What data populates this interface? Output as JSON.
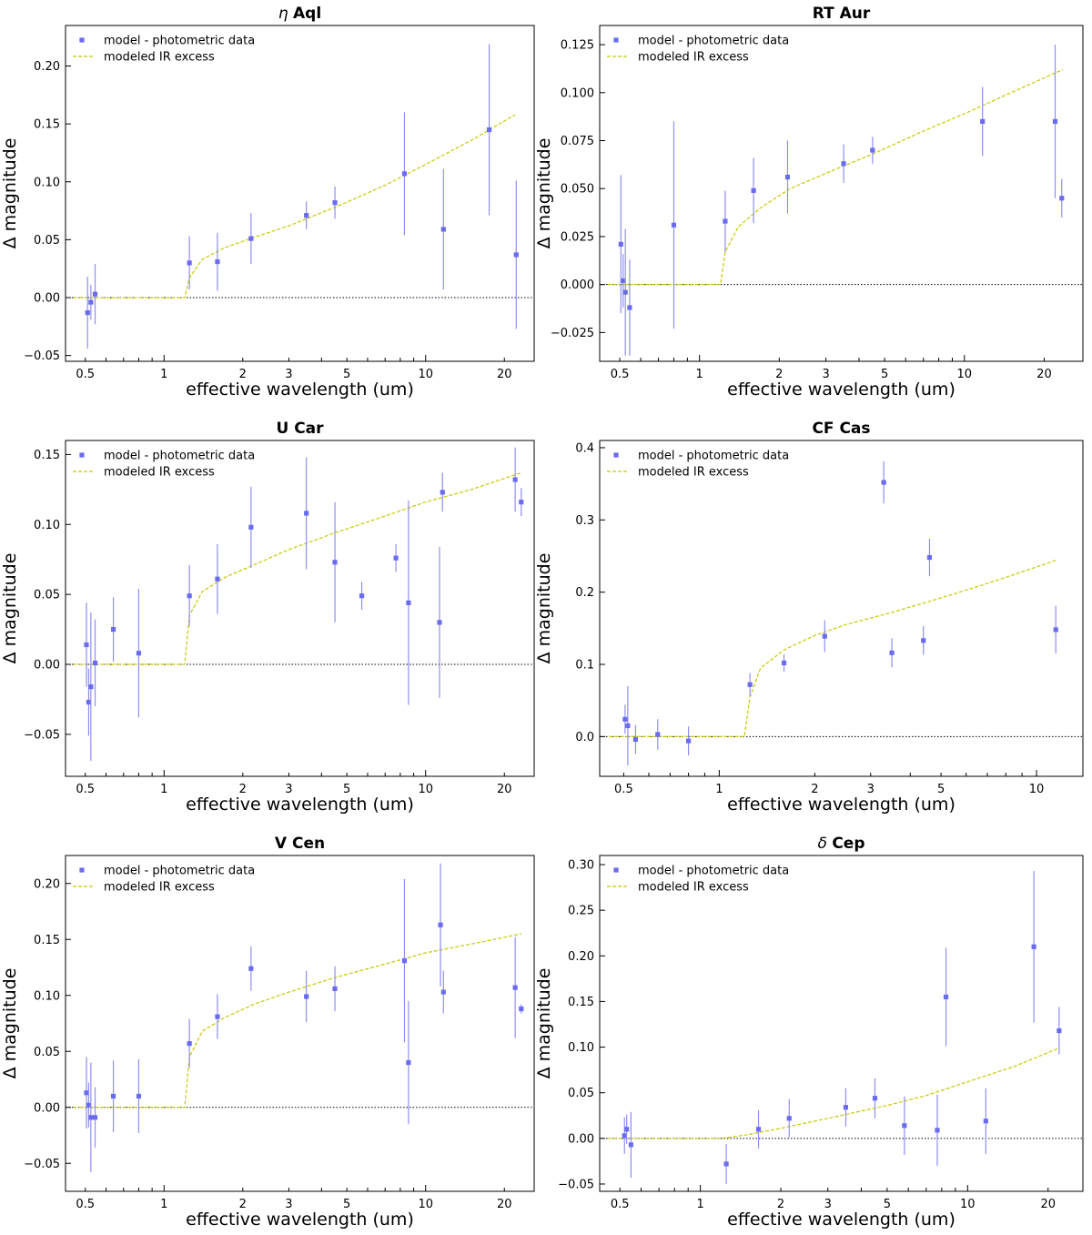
{
  "figure": {
    "xlabel": "effective wavelength (um)",
    "ylabel": "Δ magnitude",
    "legend": {
      "data": "model - photometric data",
      "model": "modeled IR excess",
      "position": "top-left"
    },
    "colors": {
      "data": "#6b6bf0",
      "errorbar": "#8f8ff2",
      "model": "#c8c800",
      "zeroline": "#000000"
    }
  },
  "chart_data": [
    {
      "type": "scatter",
      "title_prefix": "η",
      "title_main": "Aql",
      "xscale": "log",
      "xlim": [
        0.42,
        26
      ],
      "ylim": [
        -0.055,
        0.235
      ],
      "xticks": [
        0.5,
        1,
        2,
        3,
        5,
        10,
        20
      ],
      "yticks": [
        -0.05,
        0.0,
        0.05,
        0.1,
        0.15,
        0.2
      ],
      "points": [
        {
          "x": 0.51,
          "y": -0.013,
          "err": 0.031
        },
        {
          "x": 0.525,
          "y": -0.004,
          "err": 0.015
        },
        {
          "x": 0.545,
          "y": 0.003,
          "err": 0.026
        },
        {
          "x": 1.25,
          "y": 0.03,
          "err": 0.023
        },
        {
          "x": 1.6,
          "y": 0.031,
          "err": 0.025
        },
        {
          "x": 2.15,
          "y": 0.051,
          "err": 0.022
        },
        {
          "x": 3.5,
          "y": 0.071,
          "err": 0.012
        },
        {
          "x": 4.5,
          "y": 0.082,
          "err": 0.014
        },
        {
          "x": 8.3,
          "y": 0.107,
          "err": 0.053
        },
        {
          "x": 11.7,
          "y": 0.059,
          "err": 0.052
        },
        {
          "x": 17.5,
          "y": 0.145,
          "err": 0.074
        },
        {
          "x": 22.2,
          "y": 0.037,
          "err": 0.064
        }
      ],
      "model": {
        "onset": 1.2,
        "x": [
          0.45,
          1.2,
          1.25,
          1.4,
          1.7,
          2.2,
          3,
          4.5,
          7,
          10,
          15,
          22
        ],
        "y": [
          0,
          0,
          0.017,
          0.033,
          0.043,
          0.052,
          0.062,
          0.078,
          0.097,
          0.115,
          0.136,
          0.158
        ]
      }
    },
    {
      "type": "scatter",
      "title_prefix": "",
      "title_main": "RT Aur",
      "xscale": "log",
      "xlim": [
        0.42,
        28
      ],
      "ylim": [
        -0.04,
        0.135
      ],
      "xticks": [
        0.5,
        1,
        2,
        3,
        5,
        10,
        20
      ],
      "yticks": [
        -0.025,
        0.0,
        0.025,
        0.05,
        0.075,
        0.1,
        0.125
      ],
      "points": [
        {
          "x": 0.505,
          "y": 0.021,
          "err": 0.036
        },
        {
          "x": 0.515,
          "y": 0.002,
          "err": 0.014
        },
        {
          "x": 0.525,
          "y": -0.004,
          "err": 0.033
        },
        {
          "x": 0.545,
          "y": -0.012,
          "err": 0.025
        },
        {
          "x": 0.8,
          "y": 0.031,
          "err": 0.054
        },
        {
          "x": 1.25,
          "y": 0.033,
          "err": 0.016
        },
        {
          "x": 1.6,
          "y": 0.049,
          "err": 0.017
        },
        {
          "x": 2.15,
          "y": 0.056,
          "err": 0.019
        },
        {
          "x": 3.5,
          "y": 0.063,
          "err": 0.01
        },
        {
          "x": 4.5,
          "y": 0.07,
          "err": 0.007
        },
        {
          "x": 11.7,
          "y": 0.085,
          "err": 0.018
        },
        {
          "x": 22.0,
          "y": 0.085,
          "err": 0.04
        },
        {
          "x": 23.3,
          "y": 0.045,
          "err": 0.01
        }
      ],
      "model": {
        "onset": 1.2,
        "x": [
          0.45,
          1.2,
          1.25,
          1.4,
          1.7,
          2.2,
          3,
          4.5,
          7,
          10,
          15,
          23.5
        ],
        "y": [
          0,
          0,
          0.017,
          0.03,
          0.04,
          0.05,
          0.058,
          0.068,
          0.08,
          0.089,
          0.1,
          0.112
        ]
      }
    },
    {
      "type": "scatter",
      "title_prefix": "",
      "title_main": "U Car",
      "xscale": "log",
      "xlim": [
        0.42,
        26
      ],
      "ylim": [
        -0.08,
        0.16
      ],
      "xticks": [
        0.5,
        1,
        2,
        3,
        5,
        10,
        20
      ],
      "yticks": [
        -0.05,
        0.0,
        0.05,
        0.1,
        0.15
      ],
      "points": [
        {
          "x": 0.505,
          "y": 0.014,
          "err": 0.03
        },
        {
          "x": 0.515,
          "y": -0.027,
          "err": 0.024
        },
        {
          "x": 0.525,
          "y": -0.016,
          "err": 0.053
        },
        {
          "x": 0.545,
          "y": 0.001,
          "err": 0.031
        },
        {
          "x": 0.64,
          "y": 0.025,
          "err": 0.023
        },
        {
          "x": 0.8,
          "y": 0.008,
          "err": 0.046
        },
        {
          "x": 1.25,
          "y": 0.049,
          "err": 0.022
        },
        {
          "x": 1.6,
          "y": 0.061,
          "err": 0.025
        },
        {
          "x": 2.15,
          "y": 0.098,
          "err": 0.029
        },
        {
          "x": 3.5,
          "y": 0.108,
          "err": 0.04
        },
        {
          "x": 4.5,
          "y": 0.073,
          "err": 0.043
        },
        {
          "x": 5.7,
          "y": 0.049,
          "err": 0.01
        },
        {
          "x": 7.7,
          "y": 0.076,
          "err": 0.01
        },
        {
          "x": 8.6,
          "y": 0.044,
          "err": 0.073
        },
        {
          "x": 11.3,
          "y": 0.03,
          "err": 0.054
        },
        {
          "x": 11.6,
          "y": 0.123,
          "err": 0.014
        },
        {
          "x": 22.0,
          "y": 0.132,
          "err": 0.023
        },
        {
          "x": 23.2,
          "y": 0.116,
          "err": 0.01
        }
      ],
      "model": {
        "onset": 1.2,
        "x": [
          0.45,
          1.2,
          1.25,
          1.4,
          1.7,
          2.2,
          3,
          4.5,
          7,
          10,
          15,
          23.2
        ],
        "y": [
          0,
          0,
          0.035,
          0.052,
          0.062,
          0.071,
          0.082,
          0.094,
          0.106,
          0.116,
          0.125,
          0.137
        ]
      }
    },
    {
      "type": "scatter",
      "title_prefix": "",
      "title_main": "CF Cas",
      "xscale": "log",
      "xlim": [
        0.42,
        14
      ],
      "ylim": [
        -0.055,
        0.41
      ],
      "xticks": [
        0.5,
        1,
        2,
        3,
        5,
        10
      ],
      "yticks": [
        0.0,
        0.1,
        0.2,
        0.3,
        0.4
      ],
      "points": [
        {
          "x": 0.505,
          "y": 0.024,
          "err": 0.02
        },
        {
          "x": 0.515,
          "y": 0.015,
          "err": 0.055
        },
        {
          "x": 0.545,
          "y": -0.004,
          "err": 0.02
        },
        {
          "x": 0.64,
          "y": 0.003,
          "err": 0.021
        },
        {
          "x": 0.8,
          "y": -0.006,
          "err": 0.02
        },
        {
          "x": 1.25,
          "y": 0.072,
          "err": 0.016
        },
        {
          "x": 1.6,
          "y": 0.102,
          "err": 0.012
        },
        {
          "x": 2.15,
          "y": 0.139,
          "err": 0.022
        },
        {
          "x": 3.3,
          "y": 0.352,
          "err": 0.029
        },
        {
          "x": 3.5,
          "y": 0.116,
          "err": 0.02
        },
        {
          "x": 4.4,
          "y": 0.133,
          "err": 0.02
        },
        {
          "x": 4.6,
          "y": 0.248,
          "err": 0.026
        },
        {
          "x": 11.5,
          "y": 0.148,
          "err": 0.033
        }
      ],
      "model": {
        "onset": 1.2,
        "x": [
          0.45,
          1.2,
          1.25,
          1.35,
          1.6,
          2.0,
          2.5,
          3.5,
          5,
          7,
          9,
          11.5
        ],
        "y": [
          0,
          0,
          0.055,
          0.095,
          0.12,
          0.14,
          0.155,
          0.172,
          0.192,
          0.212,
          0.228,
          0.244
        ]
      }
    },
    {
      "type": "scatter",
      "title_prefix": "",
      "title_main": "V Cen",
      "xscale": "log",
      "xlim": [
        0.42,
        26
      ],
      "ylim": [
        -0.075,
        0.225
      ],
      "xticks": [
        0.5,
        1,
        2,
        3,
        5,
        10,
        20
      ],
      "yticks": [
        -0.05,
        0.0,
        0.05,
        0.1,
        0.15,
        0.2
      ],
      "points": [
        {
          "x": 0.505,
          "y": 0.013,
          "err": 0.032
        },
        {
          "x": 0.515,
          "y": 0.002,
          "err": 0.02
        },
        {
          "x": 0.525,
          "y": -0.009,
          "err": 0.049
        },
        {
          "x": 0.545,
          "y": -0.009,
          "err": 0.027
        },
        {
          "x": 0.64,
          "y": 0.01,
          "err": 0.032
        },
        {
          "x": 0.8,
          "y": 0.01,
          "err": 0.033
        },
        {
          "x": 1.25,
          "y": 0.057,
          "err": 0.022
        },
        {
          "x": 1.6,
          "y": 0.081,
          "err": 0.02
        },
        {
          "x": 2.15,
          "y": 0.124,
          "err": 0.02
        },
        {
          "x": 3.5,
          "y": 0.099,
          "err": 0.023
        },
        {
          "x": 4.5,
          "y": 0.106,
          "err": 0.02
        },
        {
          "x": 8.3,
          "y": 0.131,
          "err": 0.073
        },
        {
          "x": 8.6,
          "y": 0.04,
          "err": 0.055
        },
        {
          "x": 11.4,
          "y": 0.163,
          "err": 0.055
        },
        {
          "x": 11.7,
          "y": 0.103,
          "err": 0.019
        },
        {
          "x": 22.0,
          "y": 0.107,
          "err": 0.045
        },
        {
          "x": 23.2,
          "y": 0.088,
          "err": 0.004
        }
      ],
      "model": {
        "onset": 1.2,
        "x": [
          0.45,
          1.2,
          1.25,
          1.4,
          1.7,
          2.2,
          3,
          4.5,
          7,
          10,
          15,
          23.2
        ],
        "y": [
          0,
          0,
          0.045,
          0.068,
          0.08,
          0.092,
          0.103,
          0.116,
          0.128,
          0.138,
          0.146,
          0.155
        ]
      }
    },
    {
      "type": "scatter",
      "title_prefix": "δ",
      "title_main": "Cep",
      "xscale": "log",
      "xlim": [
        0.42,
        27
      ],
      "ylim": [
        -0.058,
        0.31
      ],
      "xticks": [
        0.5,
        1,
        2,
        3,
        5,
        10,
        20
      ],
      "yticks": [
        -0.05,
        0.0,
        0.05,
        0.1,
        0.15,
        0.2,
        0.25,
        0.3
      ],
      "points": [
        {
          "x": 0.52,
          "y": 0.003,
          "err": 0.02
        },
        {
          "x": 0.53,
          "y": 0.01,
          "err": 0.016
        },
        {
          "x": 0.55,
          "y": -0.007,
          "err": 0.036
        },
        {
          "x": 1.25,
          "y": -0.028,
          "err": 0.022
        },
        {
          "x": 1.65,
          "y": 0.01,
          "err": 0.021
        },
        {
          "x": 2.15,
          "y": 0.022,
          "err": 0.021
        },
        {
          "x": 3.5,
          "y": 0.034,
          "err": 0.021
        },
        {
          "x": 4.5,
          "y": 0.044,
          "err": 0.022
        },
        {
          "x": 5.8,
          "y": 0.014,
          "err": 0.032
        },
        {
          "x": 7.7,
          "y": 0.009,
          "err": 0.039
        },
        {
          "x": 8.3,
          "y": 0.155,
          "err": 0.054
        },
        {
          "x": 11.7,
          "y": 0.019,
          "err": 0.036
        },
        {
          "x": 17.7,
          "y": 0.21,
          "err": 0.083
        },
        {
          "x": 22.0,
          "y": 0.118,
          "err": 0.026
        }
      ],
      "model": {
        "onset": 1.2,
        "x": [
          0.45,
          1.2,
          1.5,
          2,
          3,
          4,
          5,
          7,
          10,
          15,
          22
        ],
        "y": [
          0,
          0,
          0.004,
          0.011,
          0.022,
          0.03,
          0.036,
          0.047,
          0.062,
          0.079,
          0.099
        ]
      }
    }
  ]
}
